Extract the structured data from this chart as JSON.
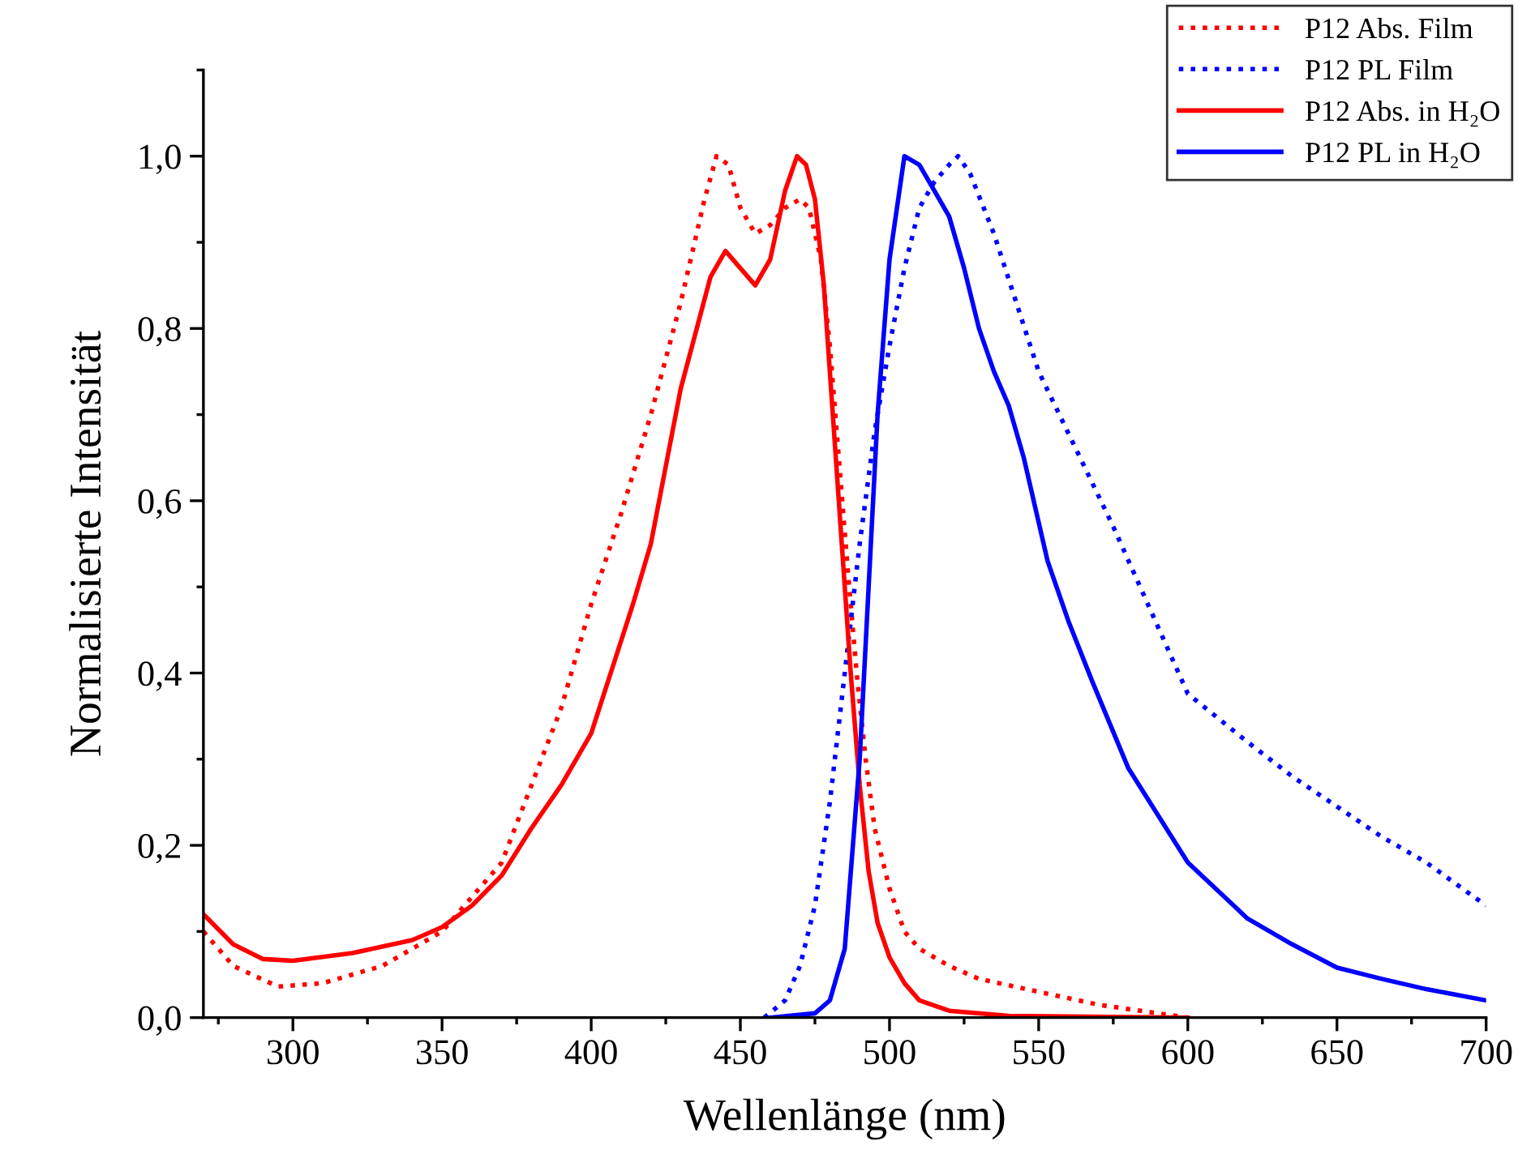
{
  "chart_data": {
    "type": "line",
    "xlabel": "Wellenlänge (nm)",
    "ylabel": "Normalisierte Intensität",
    "xlim": [
      270,
      700
    ],
    "ylim": [
      0,
      1.1
    ],
    "xticks": [
      300,
      350,
      400,
      450,
      500,
      550,
      600,
      650,
      700
    ],
    "yticks": [
      {
        "value": 0.0,
        "label": "0,0"
      },
      {
        "value": 0.2,
        "label": "0,2"
      },
      {
        "value": 0.4,
        "label": "0,4"
      },
      {
        "value": 0.6,
        "label": "0,6"
      },
      {
        "value": 0.8,
        "label": "0,8"
      },
      {
        "value": 1.0,
        "label": "1,0"
      }
    ],
    "grid": false,
    "legend": "top right",
    "marker": "none",
    "series": [
      {
        "name": "P12 Abs. Film",
        "color": "#ff0000",
        "line_style": "dotted",
        "x": [
          270,
          280,
          295,
          310,
          330,
          350,
          370,
          380,
          390,
          400,
          410,
          420,
          430,
          438,
          442,
          446,
          450,
          455,
          460,
          465,
          470,
          473,
          477,
          480,
          483,
          486,
          489,
          492,
          495,
          500,
          505,
          510,
          520,
          530,
          550,
          570,
          590,
          600
        ],
        "values": [
          0.1,
          0.06,
          0.036,
          0.04,
          0.06,
          0.1,
          0.18,
          0.27,
          0.36,
          0.48,
          0.585,
          0.7,
          0.83,
          0.95,
          1.0,
          0.99,
          0.94,
          0.91,
          0.92,
          0.94,
          0.95,
          0.94,
          0.88,
          0.78,
          0.65,
          0.52,
          0.4,
          0.3,
          0.22,
          0.15,
          0.1,
          0.08,
          0.06,
          0.045,
          0.03,
          0.015,
          0.005,
          0.0
        ]
      },
      {
        "name": "P12 PL Film",
        "color": "#0000ff",
        "line_style": "dotted",
        "x": [
          458,
          465,
          470,
          475,
          480,
          485,
          490,
          495,
          500,
          505,
          510,
          515,
          520,
          523,
          527,
          535,
          550,
          575,
          600,
          620,
          635,
          650,
          665,
          680,
          690,
          700
        ],
        "values": [
          0.0,
          0.02,
          0.06,
          0.13,
          0.25,
          0.4,
          0.55,
          0.68,
          0.78,
          0.87,
          0.94,
          0.97,
          0.99,
          1.0,
          0.98,
          0.91,
          0.75,
          0.57,
          0.376,
          0.32,
          0.28,
          0.245,
          0.21,
          0.18,
          0.155,
          0.13
        ]
      },
      {
        "name": "P12 Abs. in H₂O",
        "color": "#ff0000",
        "line_style": "solid",
        "x": [
          270,
          280,
          290,
          300,
          320,
          340,
          350,
          360,
          370,
          380,
          390,
          400,
          414,
          420,
          430,
          440,
          445,
          450,
          455,
          460,
          465,
          469,
          472,
          475,
          478,
          481,
          484,
          487,
          490,
          493,
          496,
          500,
          505,
          510,
          520,
          540,
          600
        ],
        "values": [
          0.12,
          0.085,
          0.068,
          0.066,
          0.075,
          0.09,
          0.105,
          0.13,
          0.165,
          0.22,
          0.27,
          0.33,
          0.48,
          0.55,
          0.73,
          0.86,
          0.89,
          0.87,
          0.85,
          0.88,
          0.96,
          1.0,
          0.99,
          0.95,
          0.85,
          0.7,
          0.55,
          0.4,
          0.27,
          0.17,
          0.11,
          0.07,
          0.04,
          0.02,
          0.008,
          0.002,
          0.0
        ]
      },
      {
        "name": "P12 PL in H₂O",
        "color": "#0000ff",
        "line_style": "solid",
        "x": [
          460,
          475,
          480,
          485,
          490,
          493,
          496,
          500,
          505,
          510,
          515,
          520,
          525,
          530,
          535,
          540,
          545,
          553,
          560,
          568,
          580,
          600,
          620,
          635,
          650,
          665,
          680,
          700
        ],
        "values": [
          0.0,
          0.005,
          0.02,
          0.08,
          0.3,
          0.5,
          0.7,
          0.88,
          1.0,
          0.99,
          0.96,
          0.93,
          0.87,
          0.8,
          0.75,
          0.71,
          0.65,
          0.53,
          0.46,
          0.39,
          0.29,
          0.18,
          0.115,
          0.085,
          0.058,
          0.045,
          0.033,
          0.02
        ]
      }
    ]
  }
}
